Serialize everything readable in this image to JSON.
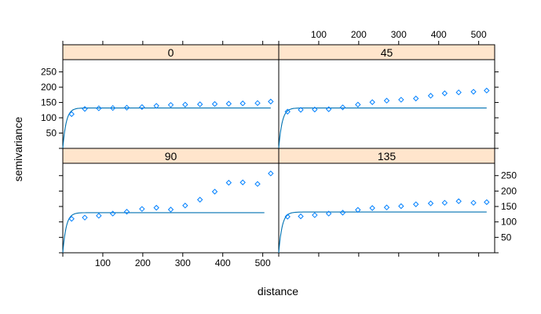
{
  "chart_data": {
    "type": "scatter",
    "layout": "lattice 2x2 panels",
    "xlabel": "distance",
    "ylabel": "semivariance",
    "xlim": [
      0,
      540
    ],
    "ylim": [
      0,
      290
    ],
    "x_ticks": [
      100,
      200,
      300,
      400,
      500
    ],
    "y_ticks": [
      50,
      100,
      150,
      200,
      250
    ],
    "colors": {
      "points": "#0080ff",
      "line": "#0072b2",
      "strip": "#ffe5cc",
      "frame": "#000000"
    },
    "panels": [
      {
        "name": "0",
        "points": {
          "x": [
            22,
            55,
            90,
            125,
            160,
            198,
            234,
            270,
            306,
            343,
            380,
            415,
            450,
            487,
            520
          ],
          "y": [
            112,
            129,
            131,
            132,
            133,
            135,
            139,
            142,
            143,
            144,
            145,
            146,
            147,
            148,
            153
          ]
        },
        "model": {
          "nugget": 0,
          "sill": 132,
          "range": 25,
          "xmax": 520
        }
      },
      {
        "name": "45",
        "points": {
          "x": [
            22,
            55,
            90,
            125,
            160,
            198,
            234,
            270,
            306,
            343,
            380,
            415,
            450,
            487,
            520
          ],
          "y": [
            120,
            126,
            127,
            128,
            134,
            143,
            151,
            156,
            159,
            163,
            172,
            180,
            183,
            185,
            189
          ]
        },
        "model": {
          "nugget": 0,
          "sill": 132,
          "range": 25,
          "xmax": 520
        }
      },
      {
        "name": "90",
        "points": {
          "x": [
            22,
            55,
            90,
            125,
            160,
            198,
            234,
            270,
            306,
            343,
            380,
            415,
            450,
            487,
            520
          ],
          "y": [
            110,
            114,
            120,
            127,
            133,
            142,
            146,
            140,
            153,
            172,
            198,
            227,
            228,
            223,
            257
          ]
        },
        "model": {
          "nugget": 0,
          "sill": 130,
          "range": 25,
          "xmax": 505
        }
      },
      {
        "name": "135",
        "points": {
          "x": [
            22,
            55,
            90,
            125,
            160,
            198,
            234,
            270,
            306,
            343,
            380,
            415,
            450,
            487,
            520
          ],
          "y": [
            117,
            118,
            122,
            127,
            130,
            139,
            145,
            147,
            151,
            157,
            160,
            162,
            167,
            162,
            164
          ]
        },
        "model": {
          "nugget": 0,
          "sill": 132,
          "range": 25,
          "xmax": 520
        }
      }
    ]
  }
}
